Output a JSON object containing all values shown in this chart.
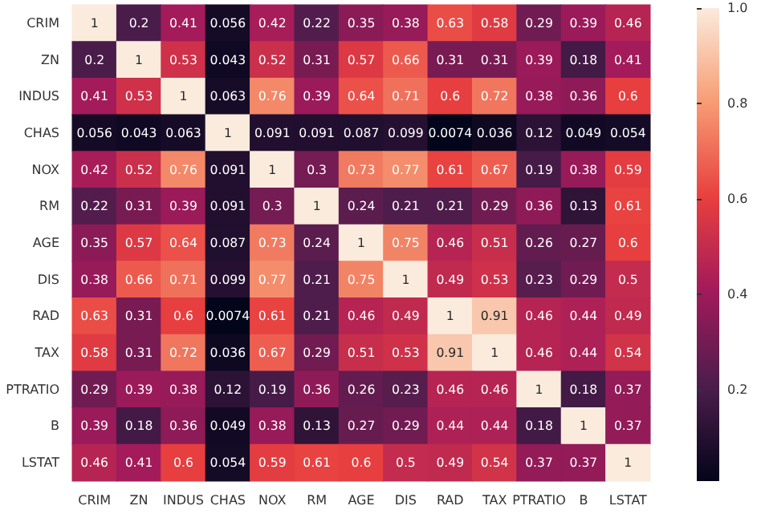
{
  "chart_data": {
    "type": "heatmap",
    "categories": [
      "CRIM",
      "ZN",
      "INDUS",
      "CHAS",
      "NOX",
      "RM",
      "AGE",
      "DIS",
      "RAD",
      "TAX",
      "PTRATIO",
      "B",
      "LSTAT"
    ],
    "y_categories": [
      "CRIM",
      "ZN",
      "INDUS",
      "CHAS",
      "NOX",
      "RM",
      "AGE",
      "DIS",
      "RAD",
      "TAX",
      "PTRATIO",
      "B",
      "LSTAT"
    ],
    "cells": [
      [
        1,
        0.2,
        0.41,
        0.056,
        0.42,
        0.22,
        0.35,
        0.38,
        0.63,
        0.58,
        0.29,
        0.39,
        0.46
      ],
      [
        0.2,
        1,
        0.53,
        0.043,
        0.52,
        0.31,
        0.57,
        0.66,
        0.31,
        0.31,
        0.39,
        0.18,
        0.41
      ],
      [
        0.41,
        0.53,
        1,
        0.063,
        0.76,
        0.39,
        0.64,
        0.71,
        0.6,
        0.72,
        0.38,
        0.36,
        0.6
      ],
      [
        0.056,
        0.043,
        0.063,
        1,
        0.091,
        0.091,
        0.087,
        0.099,
        0.0074,
        0.036,
        0.12,
        0.049,
        0.054
      ],
      [
        0.42,
        0.52,
        0.76,
        0.091,
        1,
        0.3,
        0.73,
        0.77,
        0.61,
        0.67,
        0.19,
        0.38,
        0.59
      ],
      [
        0.22,
        0.31,
        0.39,
        0.091,
        0.3,
        1,
        0.24,
        0.21,
        0.21,
        0.29,
        0.36,
        0.13,
        0.61
      ],
      [
        0.35,
        0.57,
        0.64,
        0.087,
        0.73,
        0.24,
        1,
        0.75,
        0.46,
        0.51,
        0.26,
        0.27,
        0.6
      ],
      [
        0.38,
        0.66,
        0.71,
        0.099,
        0.77,
        0.21,
        0.75,
        1,
        0.49,
        0.53,
        0.23,
        0.29,
        0.5
      ],
      [
        0.63,
        0.31,
        0.6,
        0.0074,
        0.61,
        0.21,
        0.46,
        0.49,
        1,
        0.91,
        0.46,
        0.44,
        0.49
      ],
      [
        0.58,
        0.31,
        0.72,
        0.036,
        0.67,
        0.29,
        0.51,
        0.53,
        0.91,
        1,
        0.46,
        0.44,
        0.54
      ],
      [
        0.29,
        0.39,
        0.38,
        0.12,
        0.19,
        0.36,
        0.26,
        0.23,
        0.46,
        0.46,
        1,
        0.18,
        0.37
      ],
      [
        0.39,
        0.18,
        0.36,
        0.049,
        0.38,
        0.13,
        0.27,
        0.29,
        0.44,
        0.44,
        0.18,
        1,
        0.37
      ],
      [
        0.46,
        0.41,
        0.6,
        0.054,
        0.59,
        0.61,
        0.6,
        0.5,
        0.49,
        0.54,
        0.37,
        0.37,
        1
      ]
    ],
    "data_labels": true,
    "clim": [
      0.0074,
      1
    ],
    "cticks": [
      0.2,
      0.4,
      0.6,
      0.8,
      {
        "value": 1,
        "label": "1.0"
      }
    ]
  }
}
